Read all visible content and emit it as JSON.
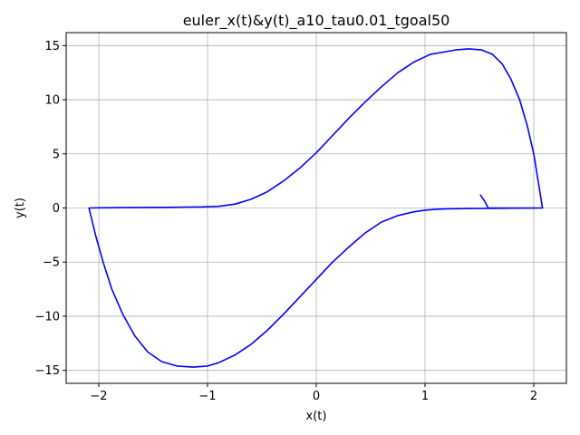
{
  "chart_data": {
    "type": "line",
    "title": "euler_x(t)&y(t)_a10_tau0.01_tgoal50",
    "xlabel": "x(t)",
    "ylabel": "y(t)",
    "xlim": [
      -2.3,
      2.3
    ],
    "ylim": [
      -16.2,
      16.2
    ],
    "xticks": [
      -2,
      -1,
      0,
      1,
      2
    ],
    "yticks": [
      -15,
      -10,
      -5,
      0,
      5,
      10,
      15
    ],
    "xtick_labels": [
      "−2",
      "−1",
      "0",
      "1",
      "2"
    ],
    "ytick_labels": [
      "−15",
      "−10",
      "−5",
      "0",
      "5",
      "10",
      "15"
    ],
    "grid": true,
    "line_color": "#0000ff",
    "series": [
      {
        "x": [
          1.51,
          1.55,
          1.58,
          2.08,
          2.04,
          2.0,
          1.94,
          1.87,
          1.79,
          1.71,
          1.62,
          1.52,
          1.4,
          1.28,
          1.17,
          1.05,
          0.9,
          0.75,
          0.6,
          0.45,
          0.3,
          0.15,
          0.0,
          -0.15,
          -0.3,
          -0.45,
          -0.6,
          -0.75,
          -0.9,
          -1.05,
          -1.2,
          -1.35,
          -1.55,
          -1.8,
          -2.0,
          -2.09,
          -2.03,
          -1.96,
          -1.88,
          -1.78,
          -1.67,
          -1.55,
          -1.42,
          -1.28,
          -1.13,
          -1.0,
          -0.9,
          -0.75,
          -0.6,
          -0.45,
          -0.3,
          -0.15,
          0.0,
          0.15,
          0.3,
          0.45,
          0.6,
          0.75,
          0.9,
          1.0,
          1.1,
          1.2,
          1.4,
          1.6,
          1.8,
          2.0,
          2.08
        ],
        "y": [
          1.2,
          0.6,
          0.0,
          0.0,
          2.5,
          5.0,
          7.6,
          10.0,
          11.9,
          13.3,
          14.2,
          14.6,
          14.7,
          14.6,
          14.4,
          14.2,
          13.5,
          12.5,
          11.2,
          9.8,
          8.3,
          6.7,
          5.1,
          3.7,
          2.5,
          1.5,
          0.8,
          0.35,
          0.15,
          0.1,
          0.08,
          0.06,
          0.05,
          0.03,
          0.02,
          0.0,
          -2.5,
          -5.0,
          -7.5,
          -9.8,
          -11.8,
          -13.3,
          -14.2,
          -14.6,
          -14.7,
          -14.6,
          -14.3,
          -13.6,
          -12.6,
          -11.3,
          -9.8,
          -8.2,
          -6.6,
          -5.0,
          -3.6,
          -2.3,
          -1.3,
          -0.7,
          -0.35,
          -0.2,
          -0.12,
          -0.08,
          -0.05,
          -0.03,
          -0.02,
          -0.01,
          0.0
        ]
      }
    ]
  }
}
